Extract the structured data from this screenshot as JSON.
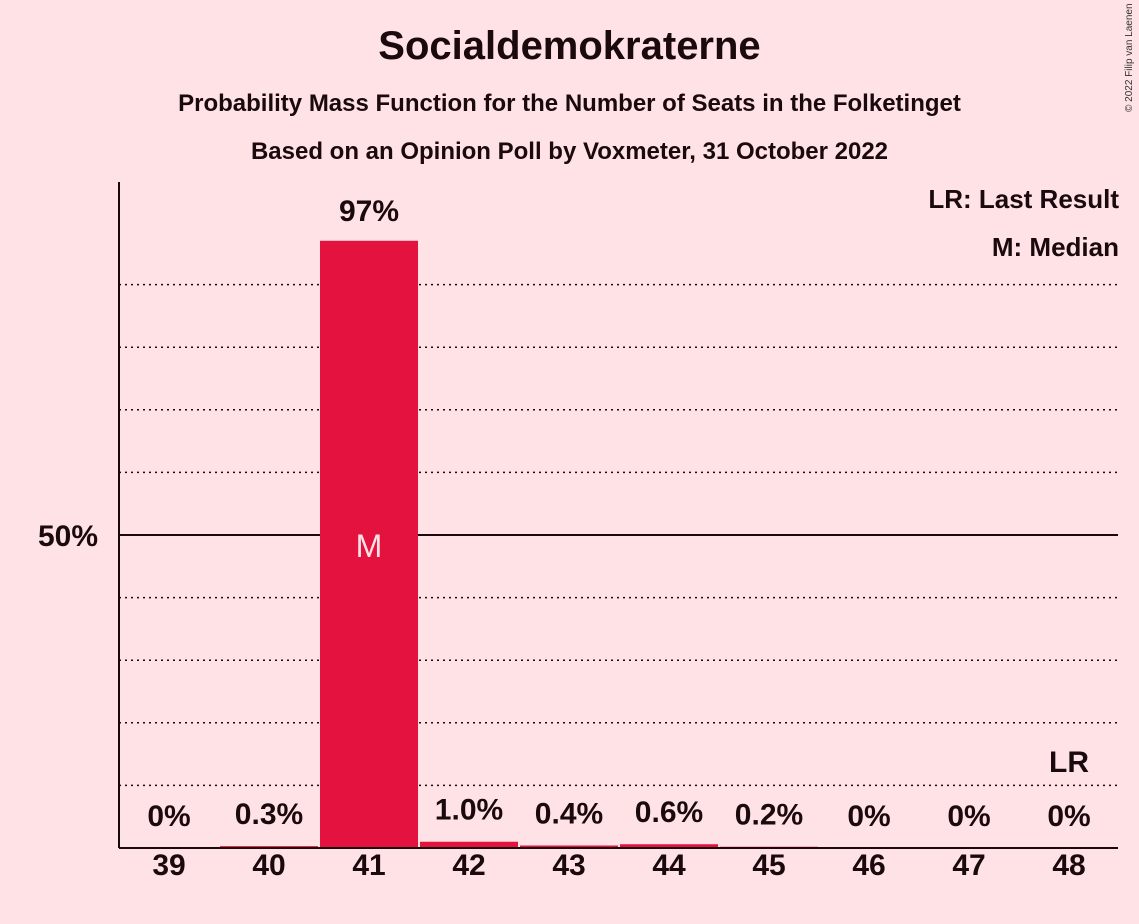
{
  "chart_data": {
    "type": "bar",
    "title": "Socialdemokraterne",
    "subtitle": "Probability Mass Function for the Number of Seats in the Folketinget",
    "subtitle2": "Based on an Opinion Poll by Voxmeter, 31 October 2022",
    "copyright": "© 2022 Filip van Laenen",
    "legend": [
      "LR: Last Result",
      "M: Median"
    ],
    "legend_position": "top-right",
    "categories": [
      "39",
      "40",
      "41",
      "42",
      "43",
      "44",
      "45",
      "46",
      "47",
      "48"
    ],
    "values": [
      0,
      0.3,
      97,
      1.0,
      0.4,
      0.6,
      0.2,
      0,
      0,
      0
    ],
    "value_labels": [
      "0%",
      "0.3%",
      "97%",
      "1.0%",
      "0.4%",
      "0.6%",
      "0.2%",
      "0%",
      "0%",
      "0%"
    ],
    "median_category": "41",
    "median_marker": "M",
    "last_result_category": "48",
    "last_result_marker": "LR",
    "ylim": [
      0,
      100
    ],
    "y_tick_labels": [
      {
        "value": 50,
        "label": "50%"
      }
    ],
    "gridlines": [
      10,
      20,
      30,
      40,
      60,
      70,
      80,
      90
    ],
    "colors": {
      "background": "#ffe2e6",
      "bar": "#e3123f",
      "text": "#1a0a0e"
    }
  }
}
